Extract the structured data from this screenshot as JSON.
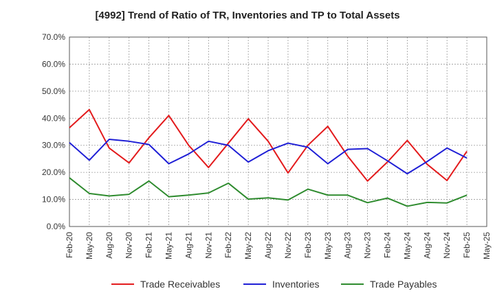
{
  "chart_data": {
    "type": "line",
    "title": "[4992]  Trend of Ratio of TR, Inventories and TP to Total Assets",
    "xlabel": "",
    "ylabel": "",
    "categories": [
      "Feb-20",
      "May-20",
      "Aug-20",
      "Nov-20",
      "Feb-21",
      "May-21",
      "Aug-21",
      "Nov-21",
      "Feb-22",
      "May-22",
      "Aug-22",
      "Nov-22",
      "Feb-23",
      "May-23",
      "Aug-23",
      "Nov-23",
      "Feb-24",
      "May-24",
      "Aug-24",
      "Nov-24",
      "Feb-25",
      "May-25"
    ],
    "ylim": [
      0,
      70
    ],
    "yticks": [
      "0.0%",
      "10.0%",
      "20.0%",
      "30.0%",
      "40.0%",
      "50.0%",
      "60.0%",
      "70.0%"
    ],
    "grid": true,
    "legend_position": "bottom",
    "series": [
      {
        "name": "Trade Receivables",
        "color": "#e31a1c",
        "values": [
          36.5,
          43.2,
          29.0,
          23.5,
          32.8,
          41.0,
          30.0,
          21.8,
          30.8,
          39.8,
          31.5,
          19.8,
          30.0,
          37.0,
          26.0,
          16.8,
          23.8,
          31.8,
          23.0,
          17.0,
          27.8,
          null
        ]
      },
      {
        "name": "Inventories",
        "color": "#1f1fd6",
        "values": [
          31.0,
          24.5,
          32.2,
          31.5,
          30.3,
          23.2,
          26.8,
          31.5,
          30.0,
          23.8,
          28.0,
          30.8,
          29.3,
          23.2,
          28.5,
          28.8,
          24.3,
          19.5,
          24.0,
          29.0,
          25.3,
          null
        ]
      },
      {
        "name": "Trade Payables",
        "color": "#2e8b2e",
        "values": [
          18.0,
          12.2,
          11.3,
          11.9,
          16.8,
          11.0,
          11.6,
          12.4,
          16.0,
          10.1,
          10.6,
          9.8,
          13.8,
          11.6,
          11.6,
          8.8,
          10.5,
          7.5,
          8.9,
          8.7,
          11.6,
          null
        ]
      }
    ]
  }
}
